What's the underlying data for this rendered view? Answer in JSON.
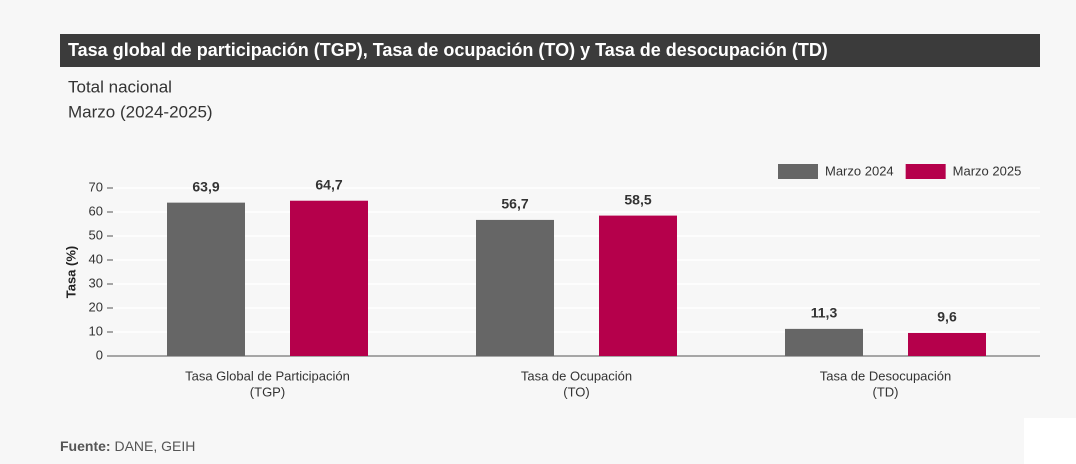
{
  "chart_data": {
    "type": "bar",
    "title": "Tasa global de participación (TGP), Tasa de ocupación (TO) y Tasa de desocupación (TD)",
    "subtitle": [
      "Total nacional",
      "Marzo (2024-2025)"
    ],
    "y_label": "Tasa (%)",
    "categories": [
      [
        "Tasa Global de Participación",
        "(TGP)"
      ],
      [
        "Tasa de Ocupación",
        "(TO)"
      ],
      [
        "Tasa de Desocupación",
        "(TD)"
      ]
    ],
    "series": [
      {
        "name": "Marzo 2024",
        "color": "#666666",
        "values": [
          63.9,
          56.7,
          11.3
        ],
        "value_labels": [
          "63,9",
          "56,7",
          "11,3"
        ]
      },
      {
        "name": "Marzo 2025",
        "color": "#b5004b",
        "values": [
          64.7,
          58.5,
          9.6
        ],
        "value_labels": [
          "64,7",
          "58,5",
          "9,6"
        ]
      }
    ],
    "ylim": [
      0,
      70
    ],
    "yticks": [
      0,
      10,
      20,
      30,
      40,
      50,
      60,
      70
    ],
    "grid": true,
    "legend": "top-right",
    "source_label": "Fuente:",
    "source": "DANE, GEIH"
  }
}
